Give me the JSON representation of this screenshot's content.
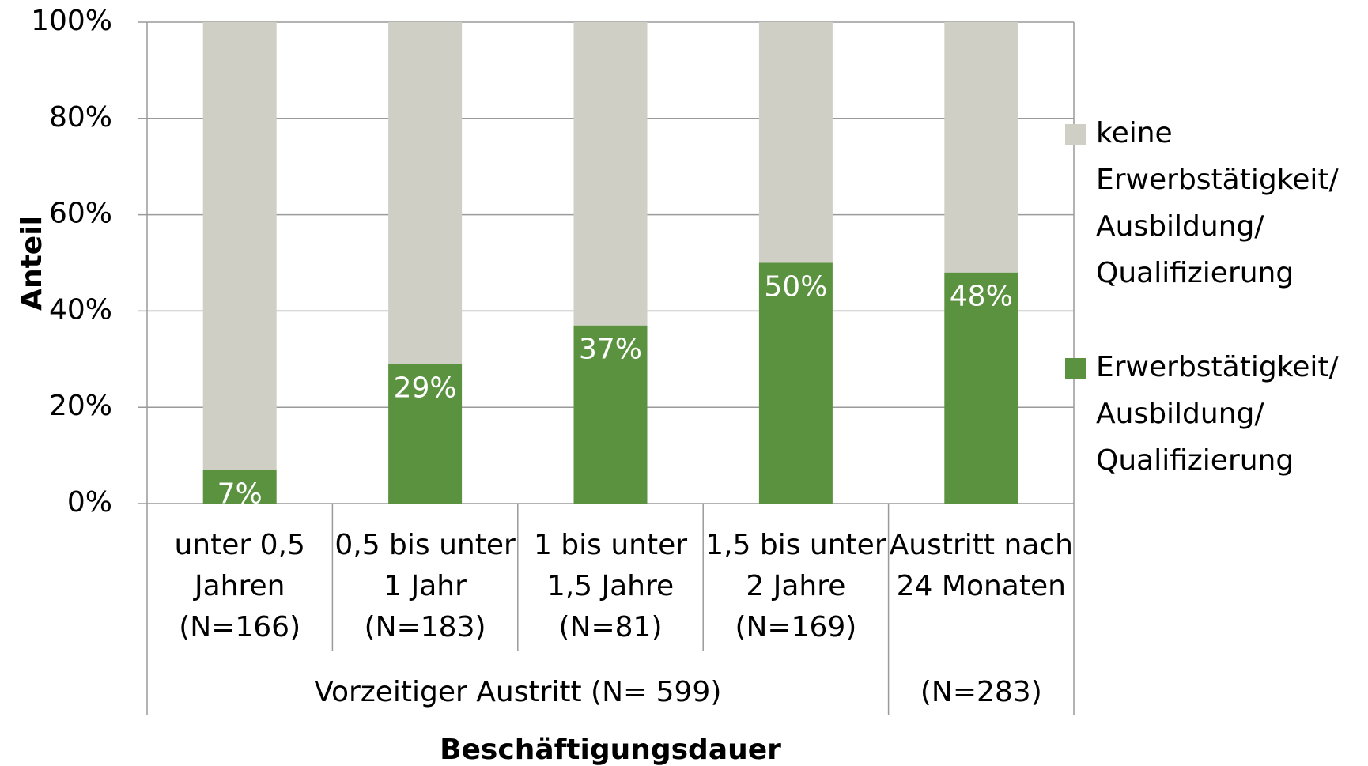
{
  "chart_data": {
    "type": "stacked_bar",
    "y_label": "Anteil",
    "x_label": "Beschäftigungsdauer",
    "categories": [
      [
        "unter 0,5",
        "Jahren",
        "(N=166)"
      ],
      [
        "0,5 bis unter",
        "1 Jahr",
        "(N=183)"
      ],
      [
        "1 bis unter",
        "1,5 Jahre",
        "(N=81)"
      ],
      [
        "1,5 bis unter",
        "2 Jahre",
        "(N=169)"
      ],
      [
        "Austritt nach",
        "24 Monaten"
      ]
    ],
    "groups": [
      "Vorzeitiger Austritt (N= 599)",
      null,
      null,
      null,
      "(N=283)"
    ],
    "series": [
      {
        "name": "Erwerbstätigkeit/ Ausbildung/ Qualifizierung",
        "color": "#5b9240",
        "values": [
          7,
          29,
          37,
          50,
          48
        ],
        "value_labels": [
          "7%",
          "29%",
          "37%",
          "50%",
          "48%"
        ]
      },
      {
        "name": "keine Erwerbstätigkeit/ Ausbildung/ Qualifizierung",
        "color": "#cfcfc6",
        "values": [
          93,
          71,
          63,
          50,
          52
        ]
      }
    ],
    "ylim": [
      0,
      100
    ],
    "yticks": [
      {
        "value": 0,
        "label": "0%"
      },
      {
        "value": 20,
        "label": "20%"
      },
      {
        "value": 40,
        "label": "40%"
      },
      {
        "value": 60,
        "label": "60%"
      },
      {
        "value": 80,
        "label": "80%"
      },
      {
        "value": 100,
        "label": "100%"
      }
    ],
    "grid": true,
    "legend": "right"
  }
}
